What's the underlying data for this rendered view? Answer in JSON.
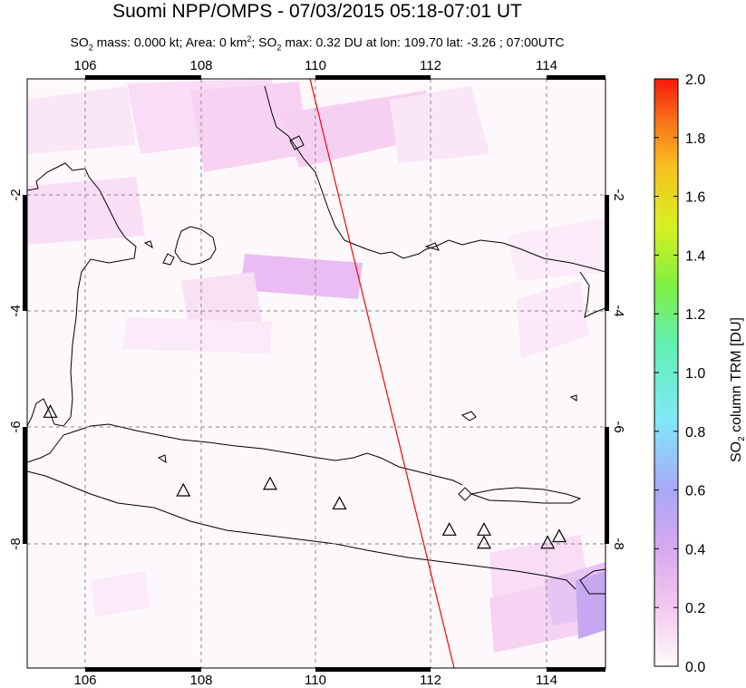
{
  "title": "Suomi NPP/OMPS - 07/03/2015 05:18-07:01 UT",
  "subtitle": {
    "so2_prefix": "SO",
    "so2_sub": "2",
    "mass_area": " mass: 0.000 kt; Area: 0 km",
    "area_sup": "2",
    "max_text": "; SO",
    "max_sub": "2",
    "max_rest": " max: 0.32 DU at lon: 109.70 lat: -3.26 ; 07:00UTC"
  },
  "map": {
    "lon_range": [
      105,
      115
    ],
    "lat_range": [
      -10,
      -1
    ],
    "lon_ticks": [
      "106",
      "108",
      "110",
      "112",
      "114"
    ],
    "lat_ticks": [
      "-2",
      "-4",
      "-6",
      "-8"
    ],
    "lat_tick_values": [
      -2,
      -4,
      -6,
      -8
    ],
    "lon_tick_values": [
      106,
      108,
      110,
      112,
      114
    ],
    "swath_edge_line_lonlat": [
      [
        110.0,
        -1.0
      ],
      [
        112.4,
        -10.0
      ]
    ],
    "volcanoes_lonlat": [
      [
        105.4,
        -6.1
      ],
      [
        107.7,
        -7.3
      ],
      [
        109.2,
        -7.2
      ],
      [
        110.4,
        -7.5
      ],
      [
        112.3,
        -7.9
      ],
      [
        112.9,
        -7.9
      ],
      [
        112.9,
        -8.1
      ],
      [
        114.0,
        -8.1
      ],
      [
        114.2,
        -8.0
      ]
    ],
    "colors": {
      "coast": "#000000",
      "grid": "#888888",
      "swath_edge": "#ff0000",
      "volcano": "#000000"
    }
  },
  "colorbar": {
    "label_prefix": "SO",
    "label_sub": "2",
    "label_rest": " column TRM [DU]",
    "ticks": [
      "2.0",
      "1.8",
      "1.6",
      "1.4",
      "1.2",
      "1.0",
      "0.8",
      "0.6",
      "0.4",
      "0.2",
      "0.0"
    ],
    "range": [
      0.0,
      2.0
    ],
    "colors": [
      "#fefafa",
      "#f4c8f0",
      "#d8a8f0",
      "#a8a8f8",
      "#80e8f8",
      "#60f0b0",
      "#80f040",
      "#d8f020",
      "#f8c020",
      "#f87018",
      "#f81808"
    ]
  }
}
